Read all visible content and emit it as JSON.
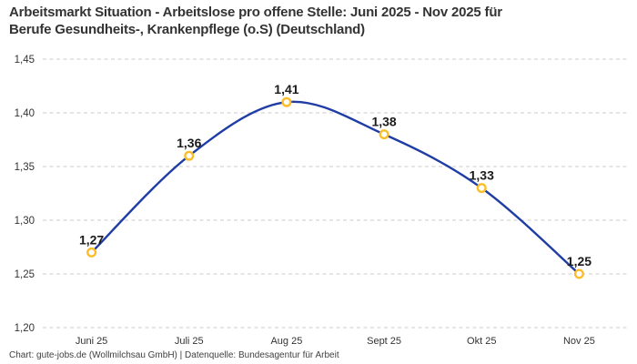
{
  "header": {
    "title": "Arbeitsmarkt Situation - Arbeitslose pro offene Stelle: Juni 2025 - Nov 2025 für\nBerufe Gesundheits-, Krankenpflege (o.S) (Deutschland)"
  },
  "footer": {
    "attribution": "Chart: gute-jobs.de (Wollmilchsau GmbH) | Datenquelle: Bundesagentur für Arbeit"
  },
  "chart_data": {
    "type": "line",
    "title": "Arbeitsmarkt Situation - Arbeitslose pro offene Stelle: Juni 2025 - Nov 2025 für Berufe Gesundheits-, Krankenpflege (o.S) (Deutschland)",
    "categories": [
      "Juni 25",
      "Juli 25",
      "Aug 25",
      "Sept 25",
      "Okt 25",
      "Nov 25"
    ],
    "values": [
      1.27,
      1.36,
      1.41,
      1.38,
      1.33,
      1.25
    ],
    "value_labels": [
      "1,27",
      "1,36",
      "1,41",
      "1,38",
      "1,33",
      "1,25"
    ],
    "xlabel": "",
    "ylabel": "",
    "ylim": [
      1.2,
      1.45
    ],
    "y_ticks": [
      {
        "value": 1.2,
        "label": "1,20"
      },
      {
        "value": 1.25,
        "label": "1,25"
      },
      {
        "value": 1.3,
        "label": "1,30"
      },
      {
        "value": 1.35,
        "label": "1,35"
      },
      {
        "value": 1.4,
        "label": "1,40"
      },
      {
        "value": 1.45,
        "label": "1,45"
      }
    ],
    "grid": "horizontal-dashed",
    "legend": "none",
    "line_smoothing": "spline",
    "colors": {
      "line": "#1f3da4",
      "marker_ring": "#fbbe28",
      "marker_fill": "#ffffff",
      "grid": "#cbcbcb",
      "tick_text": "#333333",
      "value_label_text": "#1a1a1a"
    }
  }
}
